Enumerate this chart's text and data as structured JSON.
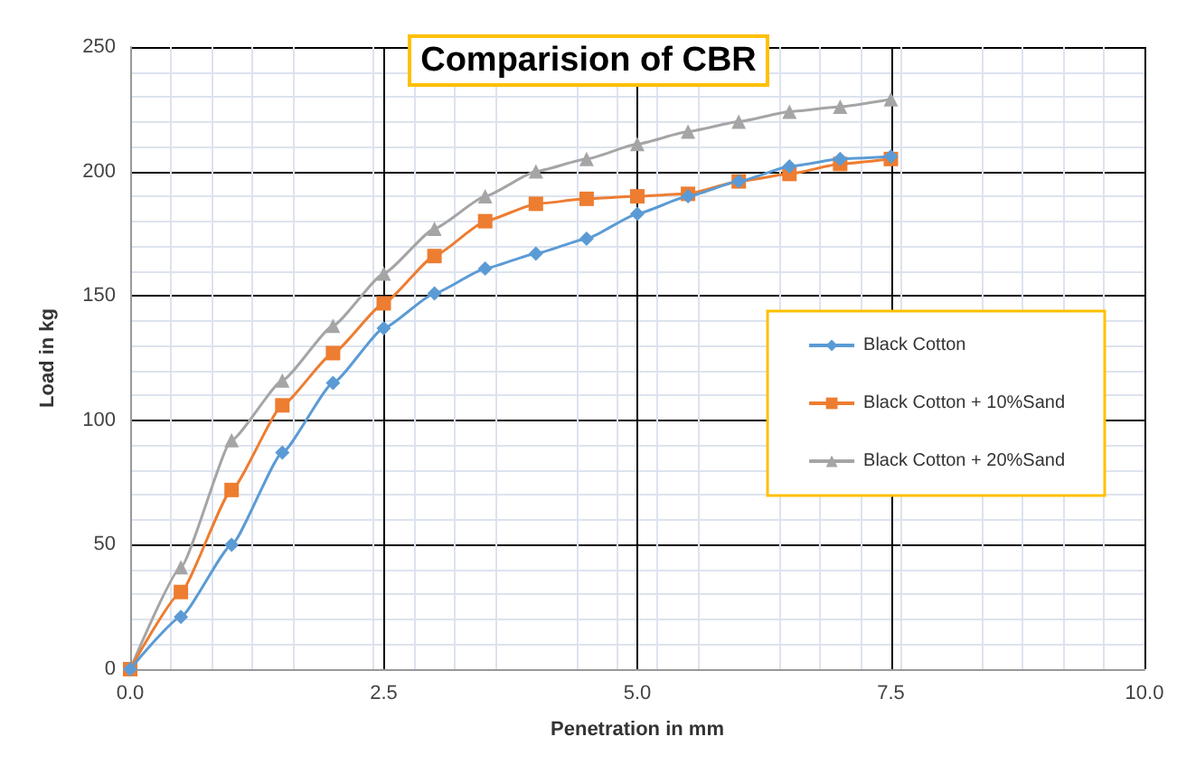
{
  "chart_data": {
    "type": "line",
    "title": "Comparision of CBR",
    "xlabel": "Penetration in mm",
    "ylabel": "Load in kg",
    "x": [
      0,
      0.5,
      1,
      1.5,
      2,
      2.5,
      3,
      3.5,
      4,
      4.5,
      5,
      5.5,
      6,
      6.5,
      7,
      7.5
    ],
    "series": [
      {
        "name": "Black Cotton",
        "color": "#5b9bd5",
        "marker": "diamond",
        "values": [
          0,
          21,
          50,
          87,
          115,
          137,
          151,
          161,
          167,
          173,
          183,
          190,
          196,
          202,
          205,
          206
        ]
      },
      {
        "name": "Black Cotton + 10%Sand",
        "color": "#ed7d31",
        "marker": "square",
        "values": [
          0,
          31,
          72,
          106,
          127,
          147,
          166,
          180,
          187,
          189,
          190,
          191,
          196,
          199,
          203,
          205
        ]
      },
      {
        "name": "Black Cotton + 20%Sand",
        "color": "#a5a5a5",
        "marker": "triangle",
        "values": [
          0,
          41,
          92,
          116,
          138,
          159,
          177,
          190,
          200,
          205,
          211,
          216,
          220,
          224,
          226,
          229
        ]
      }
    ],
    "xlim": [
      0,
      10
    ],
    "xticks": [
      {
        "value": 0,
        "label": "0.0"
      },
      {
        "value": 2.5,
        "label": "2.5"
      },
      {
        "value": 5,
        "label": "5.0"
      },
      {
        "value": 7.5,
        "label": "7.5"
      },
      {
        "value": 10,
        "label": "10.0"
      }
    ],
    "ylim": [
      0,
      250
    ],
    "yticks": [
      0,
      50,
      100,
      150,
      200,
      250
    ],
    "grid": true,
    "legend": "right",
    "line_style": "solid"
  }
}
